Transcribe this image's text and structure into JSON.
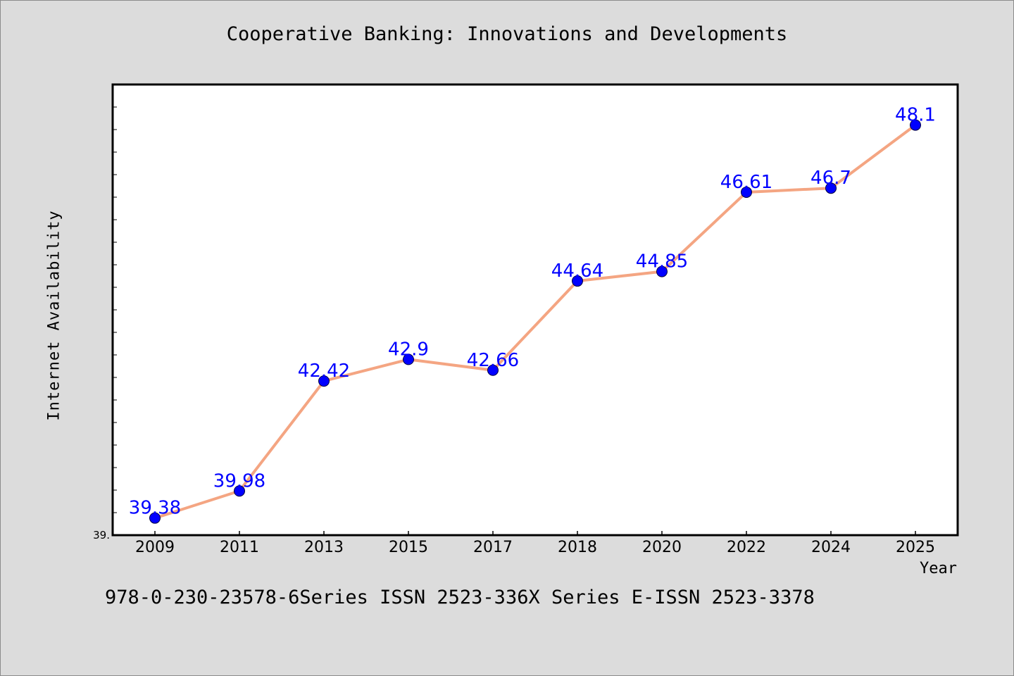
{
  "chart_data": {
    "type": "line",
    "title": "Cooperative Banking: Innovations and Developments",
    "xlabel": "Year",
    "ylabel": "Internet Availability",
    "categories": [
      "2009",
      "2011",
      "2013",
      "2015",
      "2017",
      "2018",
      "2020",
      "2022",
      "2024",
      "2025"
    ],
    "values": [
      39.38,
      39.98,
      42.42,
      42.9,
      42.66,
      44.64,
      44.85,
      46.61,
      46.7,
      48.1
    ],
    "value_labels": [
      "39.38",
      "39.98",
      "42.42",
      "42.9",
      "42.66",
      "44.64",
      "44.85",
      "46.61",
      "46.7",
      "48.1"
    ],
    "ylim": [
      39.0,
      49.0
    ],
    "y_min_label": "39.",
    "grid": false,
    "line_color": "#f4a582",
    "marker_color": "#0000ff",
    "label_color": "#0000ff",
    "background_color": "#dcdcdc",
    "plot_background": "#ffffff"
  },
  "footer": {
    "text": "978-0-230-23578-6Series ISSN 2523-336X Series E-ISSN 2523-3378"
  }
}
